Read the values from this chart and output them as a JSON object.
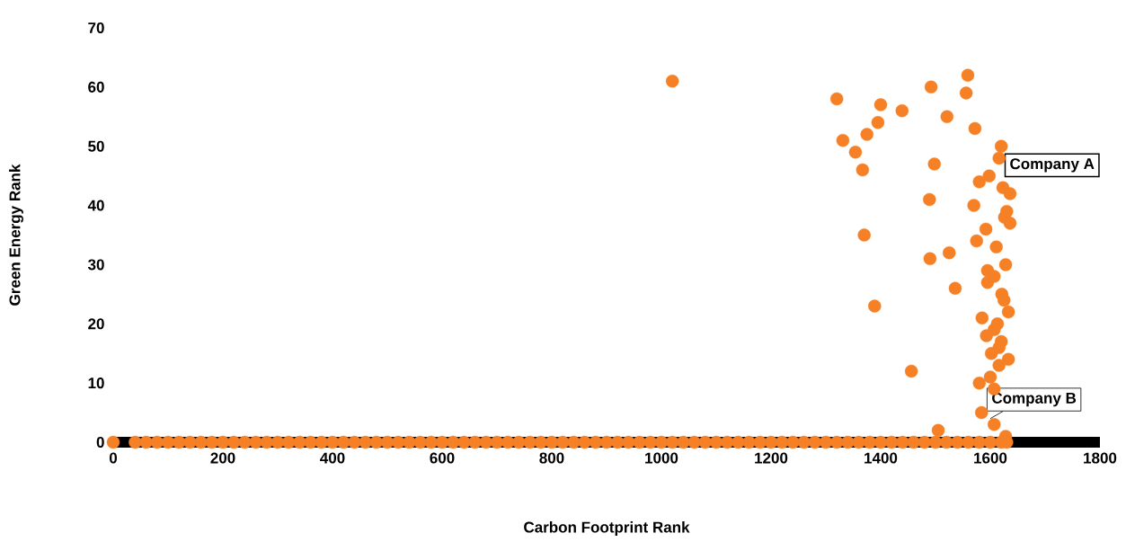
{
  "chart_data": {
    "type": "scatter",
    "xlabel": "Carbon Footprint Rank",
    "ylabel": "Green Energy Rank",
    "color": "#f58025",
    "grid": false,
    "xlim": [
      0,
      1800
    ],
    "ylim": [
      0,
      70
    ],
    "xticks": [
      0,
      200,
      400,
      600,
      800,
      1000,
      1200,
      1400,
      1600,
      1800
    ],
    "yticks": [
      0,
      10,
      20,
      30,
      40,
      50,
      60,
      70
    ],
    "x": [
      1020,
      1320,
      1331,
      1354,
      1367,
      1375,
      1395,
      1400,
      1439,
      1492,
      1559,
      1556,
      1521,
      1572,
      1498,
      1489,
      1570,
      1370,
      1490,
      1525,
      1536,
      1389,
      1456,
      1505,
      1620,
      1616,
      1580,
      1598,
      1623,
      1636,
      1630,
      1626,
      1636,
      1592,
      1575,
      1611,
      1595,
      1607,
      1595,
      1628,
      1621,
      1625,
      1633,
      1585,
      1613,
      1607,
      1593,
      1620,
      1616,
      1602,
      1633,
      1616,
      1600,
      1580,
      1607,
      1584,
      1607,
      1628,
      0,
      40,
      60,
      80,
      100,
      120,
      140,
      160,
      180,
      200,
      220,
      240,
      260,
      280,
      300,
      320,
      340,
      360,
      380,
      400,
      420,
      440,
      460,
      480,
      500,
      520,
      540,
      560,
      580,
      600,
      620,
      640,
      660,
      680,
      700,
      720,
      740,
      760,
      780,
      800,
      820,
      840,
      860,
      880,
      900,
      920,
      940,
      960,
      980,
      1000,
      1020,
      1040,
      1060,
      1080,
      1100,
      1120,
      1140,
      1160,
      1180,
      1200,
      1220,
      1240,
      1260,
      1280,
      1300,
      1320,
      1340,
      1360,
      1380,
      1400,
      1420,
      1440,
      1460,
      1480,
      1500,
      1520,
      1540,
      1560,
      1580,
      1600,
      1620,
      1630
    ],
    "values": [
      61,
      58,
      51,
      49,
      46,
      52,
      54,
      57,
      56,
      60,
      62,
      59,
      55,
      53,
      47,
      41,
      40,
      35,
      31,
      32,
      26,
      23,
      12,
      2,
      50,
      48,
      44,
      45,
      43,
      42,
      39,
      38,
      37,
      36,
      34,
      33,
      29,
      28,
      27,
      30,
      25,
      24,
      22,
      21,
      20,
      19,
      18,
      17,
      16,
      15,
      14,
      13,
      11,
      10,
      9,
      5,
      3,
      1,
      0,
      0,
      0,
      0,
      0,
      0,
      0,
      0,
      0,
      0,
      0,
      0,
      0,
      0,
      0,
      0,
      0,
      0,
      0,
      0,
      0,
      0,
      0,
      0,
      0,
      0,
      0,
      0,
      0,
      0,
      0,
      0,
      0,
      0,
      0,
      0,
      0,
      0,
      0,
      0,
      0,
      0,
      0,
      0,
      0,
      0,
      0,
      0,
      0,
      0,
      0,
      0,
      0,
      0,
      0,
      0,
      0,
      0,
      0,
      0,
      0,
      0,
      0,
      0,
      0,
      0,
      0,
      0,
      0,
      0,
      0,
      0,
      0,
      0,
      0,
      0,
      0,
      0,
      0,
      0,
      0,
      0
    ],
    "annotations": [
      {
        "text": "Company A",
        "x": 1616,
        "y": 48
      },
      {
        "text": "Company B",
        "x": 1600,
        "y": 4
      }
    ]
  }
}
